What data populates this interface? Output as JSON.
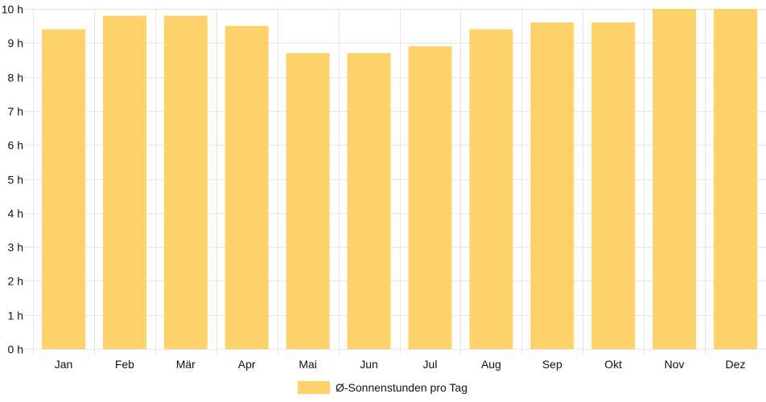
{
  "chart_data": {
    "type": "bar",
    "categories": [
      "Jan",
      "Feb",
      "Mär",
      "Apr",
      "Mai",
      "Jun",
      "Jul",
      "Aug",
      "Sep",
      "Okt",
      "Nov",
      "Dez"
    ],
    "series": [
      {
        "name": "Ø-Sonnenstunden pro Tag",
        "values": [
          9.4,
          9.8,
          9.8,
          9.5,
          8.7,
          8.7,
          8.9,
          9.4,
          9.6,
          9.6,
          10.0,
          10.0
        ]
      }
    ],
    "y_ticks": [
      "0 h",
      "1 h",
      "2 h",
      "3 h",
      "4 h",
      "5 h",
      "6 h",
      "7 h",
      "8 h",
      "9 h",
      "10 h"
    ],
    "ylim": [
      0,
      10
    ],
    "grid": true,
    "legend_position": "bottom",
    "colors": {
      "bar": "#fdd26a",
      "grid": "#e6e6e6",
      "text": "#111111"
    }
  }
}
